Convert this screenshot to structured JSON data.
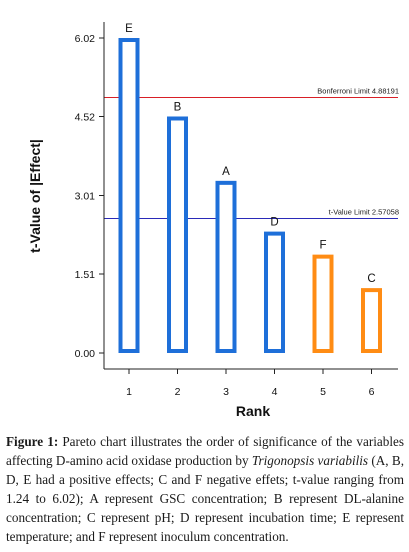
{
  "chart_data": {
    "type": "bar",
    "xlabel": "Rank",
    "ylabel": "t-Value of |Effect|",
    "ylim": [
      0,
      6.3
    ],
    "yticks": [
      0.0,
      1.51,
      3.01,
      4.52,
      6.02
    ],
    "ytick_labels": [
      "0.00",
      "1.51",
      "3.01",
      "4.52",
      "6.02"
    ],
    "categories": [
      "1",
      "2",
      "3",
      "4",
      "5",
      "6"
    ],
    "values": [
      6.02,
      4.52,
      3.29,
      2.32,
      1.88,
      1.24
    ],
    "bar_labels": [
      "E",
      "B",
      "A",
      "D",
      "F",
      "C"
    ],
    "bar_effect": [
      "positive",
      "positive",
      "positive",
      "positive",
      "negative",
      "negative"
    ],
    "colors": {
      "positive": "#1e6fd9",
      "negative": "#ff8c14"
    },
    "reference_lines": [
      {
        "name": "Bonferroni Limit 4.88191",
        "value": 4.88191,
        "color": "#d81f26"
      },
      {
        "name": "t-Value Limit 2.57058",
        "value": 2.57058,
        "color": "#2a2ab8"
      }
    ],
    "grid": false
  },
  "caption": {
    "label": "Figure 1:",
    "text_1": " Pareto chart illustrates the order of significance of the variables affecting D-amino acid oxidase production by ",
    "species": "Trigonopsis variabilis",
    "text_2": " (A, B, D, E had a positive effects; C and F negative effets; t-value ranging from 1.24 to 6.02); A represent GSC concentration; B represent DL-alanine concentration; C represent pH; D represent incubation time; E represent temperature; and F represent inoculum concentration."
  }
}
